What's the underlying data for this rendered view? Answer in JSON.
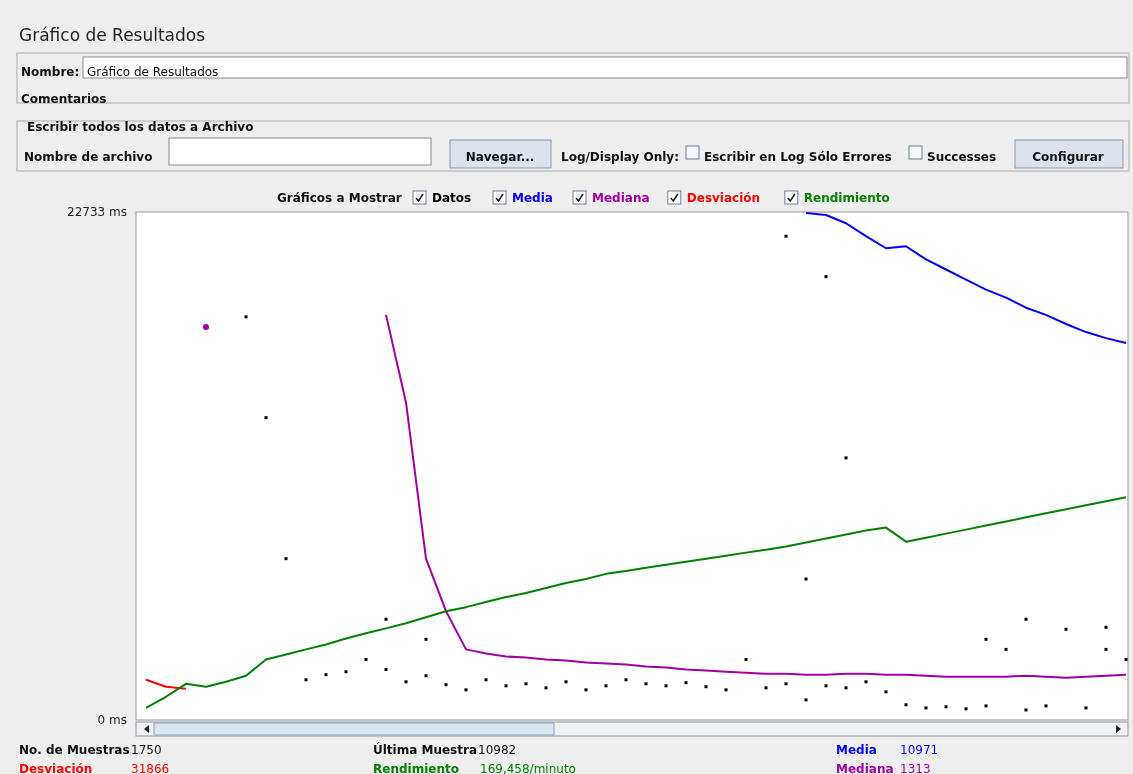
{
  "chart_data": {
    "type": "line",
    "title": "Gráfico de Resultados",
    "categories": [
      null,
      null,
      null,
      null,
      null,
      null,
      null,
      null,
      null,
      null,
      null,
      null,
      null,
      null,
      null,
      null,
      null,
      null,
      null,
      null,
      null,
      null,
      null,
      null,
      null,
      null,
      null,
      null,
      null,
      null,
      null,
      null,
      null,
      null,
      null,
      null,
      null,
      null,
      null,
      null,
      null,
      null,
      null,
      null,
      null,
      null,
      null,
      null,
      null,
      null
    ],
    "ylim": [
      0,
      22733
    ],
    "yticks": [
      {
        "value": 0,
        "label": "0 ms"
      },
      {
        "value": 22733,
        "label": "22733 ms"
      }
    ],
    "tick_labels": "y",
    "legend": "top",
    "series": [
      {
        "name": "Datos",
        "type": "scatter",
        "marker": "square",
        "color": "#000000",
        "values": [
          null,
          null,
          null,
          null,
          null,
          null,
          null,
          null,
          1800,
          2030,
          2160,
          2710,
          2260,
          1710,
          1980,
          1580,
          1350,
          1800,
          1530,
          1620,
          1440,
          1710,
          1350,
          1530,
          1800,
          1620,
          1530,
          1670,
          1490,
          1350,
          2710,
          1440,
          1620,
          900,
          1530,
          1440,
          1710,
          1260,
          680,
          540,
          590,
          500,
          630,
          3160,
          450,
          630,
          4060,
          540,
          4150,
          2710
        ]
      },
      {
        "name": "Media",
        "color": "#0000ff",
        "values": [
          null,
          null,
          null,
          null,
          null,
          null,
          null,
          null,
          null,
          null,
          null,
          null,
          null,
          null,
          null,
          null,
          null,
          null,
          null,
          null,
          null,
          null,
          null,
          null,
          null,
          null,
          null,
          null,
          null,
          null,
          null,
          null,
          null,
          22690,
          22600,
          22230,
          21650,
          21110,
          21200,
          20610,
          20160,
          19710,
          19260,
          18900,
          18450,
          18130,
          17720,
          17360,
          17090,
          16870
        ]
      },
      {
        "name": "Mediana",
        "color": "#a000a0",
        "values": [
          null,
          null,
          null,
          17590,
          null,
          null,
          null,
          null,
          null,
          null,
          null,
          null,
          18130,
          14210,
          7220,
          4870,
          3160,
          2980,
          2840,
          2800,
          2710,
          2660,
          2570,
          2530,
          2480,
          2390,
          2350,
          2260,
          2210,
          2160,
          2120,
          2070,
          2070,
          2030,
          2030,
          2070,
          2070,
          2030,
          2030,
          1980,
          1940,
          1940,
          1940,
          1940,
          1980,
          1940,
          1890,
          1940,
          1980,
          2030
        ]
      },
      {
        "name": "Desviación",
        "color": "#ff0000",
        "values": [
          1800,
          1490,
          1400,
          null,
          null,
          null,
          null,
          null,
          null,
          null,
          null,
          null,
          null,
          null,
          null,
          null,
          null,
          null,
          null,
          null,
          null,
          null,
          null,
          null,
          null,
          null,
          null,
          null,
          null,
          null,
          null,
          null,
          null,
          null,
          null,
          null,
          null,
          null,
          null,
          null,
          null,
          null,
          null,
          null,
          null,
          null,
          null,
          null,
          null,
          null
        ]
      },
      {
        "name": "Rendimiento",
        "color": "#008000",
        "values": [
          540,
          1040,
          1620,
          1490,
          1710,
          1980,
          2710,
          2930,
          3160,
          3380,
          3650,
          3880,
          4100,
          4330,
          4600,
          4870,
          5050,
          5280,
          5500,
          5680,
          5910,
          6130,
          6310,
          6540,
          6670,
          6810,
          6950,
          7080,
          7220,
          7350,
          7490,
          7620,
          7760,
          7940,
          8120,
          8300,
          8480,
          8610,
          7980,
          8160,
          8340,
          8520,
          8700,
          8880,
          9070,
          9250,
          9430,
          9610,
          9790,
          9970
        ]
      },
      {
        "type": "scatter",
        "marker": "square",
        "color": "#000000",
        "values": [
          null,
          null,
          null,
          null,
          null,
          18040,
          13530,
          7220,
          null,
          null,
          null,
          null,
          4510,
          null,
          3610,
          null,
          null,
          null,
          null,
          null,
          null,
          null,
          null,
          null,
          null,
          null,
          null,
          null,
          null,
          null,
          null,
          null,
          21650,
          6310,
          19840,
          11730,
          null,
          null,
          null,
          null,
          null,
          null,
          3610,
          null,
          4510,
          null,
          null,
          null,
          3160,
          null
        ]
      }
    ],
    "annotations": [
      "Nombre:",
      "Gráfico de Resultados",
      "Comentarios",
      "Escribir todos los datos a Archivo",
      "Nombre de archivo",
      "Navegar...",
      "Log/Display Only:",
      "Escribir en Log Sólo Errores",
      "Successes",
      "Configurar",
      "Gráficos a Mostrar",
      "No. de Muestras",
      "1750",
      "Última Muestra",
      "10982",
      "Media",
      "10971",
      "Desviación",
      "31866",
      "Rendimiento",
      "169,458/minuto",
      "Mediana",
      "1313"
    ]
  }
}
